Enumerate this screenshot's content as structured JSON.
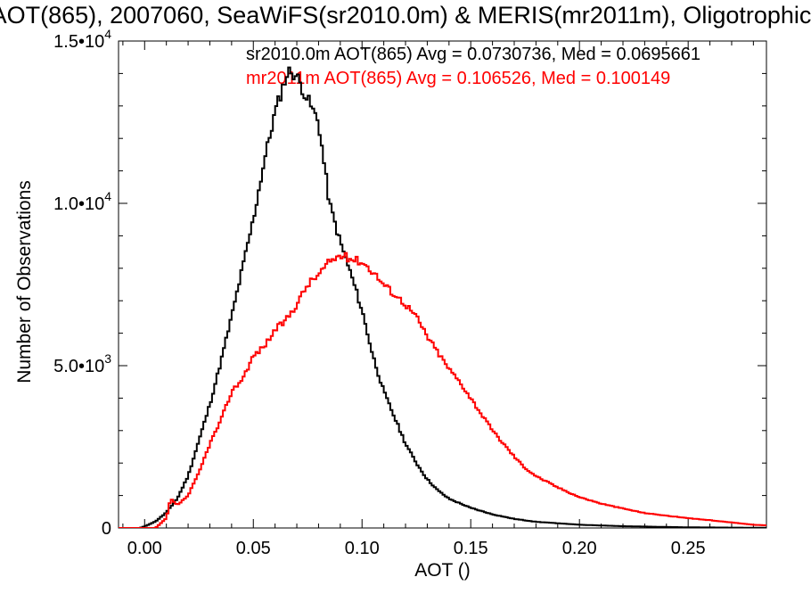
{
  "chart_data": {
    "type": "step",
    "title": "AOT(865), 2007060, SeaWiFS(sr2010.0m) & MERIS(mr2011m), Oligotrophic",
    "xlabel": "AOT ()",
    "ylabel": "Number of Observations",
    "xlim": [
      -0.012,
      0.286
    ],
    "ylim": [
      0,
      15000
    ],
    "x_ticks": [
      0.0,
      0.05,
      0.1,
      0.15,
      0.2,
      0.25
    ],
    "x_tick_labels": [
      "0.00",
      "0.05",
      "0.10",
      "0.15",
      "0.20",
      "0.25"
    ],
    "y_ticks": [
      0,
      5000,
      10000,
      15000
    ],
    "y_tick_labels": [
      {
        "mantissa": "0",
        "exp": ""
      },
      {
        "mantissa": "5.0•10",
        "exp": "3"
      },
      {
        "mantissa": "1.0•10",
        "exp": "4"
      },
      {
        "mantissa": "1.5•10",
        "exp": "4"
      }
    ],
    "legend": [
      "sr2010.0m AOT(865) Avg = 0.0730736, Med = 0.0695661",
      "mr2011m AOT(865) Avg = 0.106526, Med = 0.100149"
    ],
    "series": [
      {
        "name": "sr2010.0m",
        "color": "#000000",
        "points": [
          [
            -0.012,
            0
          ],
          [
            -0.002,
            0
          ],
          [
            0.0,
            50
          ],
          [
            0.005,
            200
          ],
          [
            0.01,
            480
          ],
          [
            0.015,
            900
          ],
          [
            0.02,
            1600
          ],
          [
            0.025,
            2700
          ],
          [
            0.03,
            3800
          ],
          [
            0.035,
            5100
          ],
          [
            0.04,
            6500
          ],
          [
            0.045,
            8000
          ],
          [
            0.05,
            9500
          ],
          [
            0.055,
            11300
          ],
          [
            0.06,
            12800
          ],
          [
            0.065,
            13900
          ],
          [
            0.067,
            14100
          ],
          [
            0.07,
            13900
          ],
          [
            0.075,
            13200
          ],
          [
            0.08,
            12500
          ],
          [
            0.085,
            10000
          ],
          [
            0.09,
            8800
          ],
          [
            0.095,
            7800
          ],
          [
            0.1,
            6700
          ],
          [
            0.105,
            5300
          ],
          [
            0.11,
            4200
          ],
          [
            0.115,
            3400
          ],
          [
            0.12,
            2600
          ],
          [
            0.125,
            2000
          ],
          [
            0.13,
            1500
          ],
          [
            0.135,
            1150
          ],
          [
            0.14,
            900
          ],
          [
            0.15,
            620
          ],
          [
            0.16,
            420
          ],
          [
            0.17,
            280
          ],
          [
            0.18,
            190
          ],
          [
            0.2,
            100
          ],
          [
            0.22,
            55
          ],
          [
            0.25,
            20
          ],
          [
            0.286,
            5
          ]
        ]
      },
      {
        "name": "mr2011m",
        "color": "#ff0000",
        "points": [
          [
            -0.012,
            0
          ],
          [
            0.005,
            0
          ],
          [
            0.01,
            300
          ],
          [
            0.012,
            900
          ],
          [
            0.015,
            700
          ],
          [
            0.02,
            1000
          ],
          [
            0.025,
            1700
          ],
          [
            0.03,
            2600
          ],
          [
            0.035,
            3300
          ],
          [
            0.04,
            4200
          ],
          [
            0.045,
            4600
          ],
          [
            0.05,
            5300
          ],
          [
            0.055,
            5600
          ],
          [
            0.06,
            6100
          ],
          [
            0.065,
            6400
          ],
          [
            0.07,
            6900
          ],
          [
            0.075,
            7500
          ],
          [
            0.08,
            7800
          ],
          [
            0.085,
            8200
          ],
          [
            0.09,
            8400
          ],
          [
            0.095,
            8300
          ],
          [
            0.1,
            8200
          ],
          [
            0.105,
            7900
          ],
          [
            0.11,
            7500
          ],
          [
            0.115,
            7200
          ],
          [
            0.12,
            6900
          ],
          [
            0.125,
            6500
          ],
          [
            0.13,
            5900
          ],
          [
            0.135,
            5400
          ],
          [
            0.14,
            4900
          ],
          [
            0.145,
            4500
          ],
          [
            0.15,
            4000
          ],
          [
            0.155,
            3500
          ],
          [
            0.16,
            3000
          ],
          [
            0.165,
            2600
          ],
          [
            0.17,
            2200
          ],
          [
            0.175,
            1850
          ],
          [
            0.18,
            1600
          ],
          [
            0.19,
            1250
          ],
          [
            0.2,
            950
          ],
          [
            0.21,
            750
          ],
          [
            0.22,
            600
          ],
          [
            0.23,
            460
          ],
          [
            0.24,
            380
          ],
          [
            0.25,
            300
          ],
          [
            0.26,
            240
          ],
          [
            0.27,
            170
          ],
          [
            0.28,
            100
          ],
          [
            0.286,
            80
          ]
        ]
      }
    ]
  }
}
